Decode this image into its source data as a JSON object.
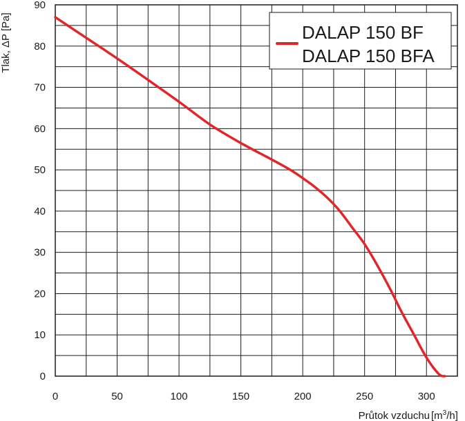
{
  "chart_data": {
    "type": "line",
    "title": "",
    "xlabel": "Průtok vzduchu",
    "xlabel_unit": "[m3/h]",
    "ylabel": "Tlak, ΔP [Pa]",
    "xlim": [
      0,
      325
    ],
    "ylim": [
      0,
      90
    ],
    "x_ticks": [
      0,
      50,
      100,
      150,
      200,
      250,
      300
    ],
    "y_ticks": [
      0,
      10,
      20,
      30,
      40,
      50,
      60,
      70,
      80,
      90
    ],
    "minor_x_step": 25,
    "minor_y_step": 5,
    "grid": true,
    "legend_position": "top-right",
    "series": [
      {
        "name": "DALAP 150 BF",
        "name2": "DALAP 150 BFA",
        "color": "#e0262b",
        "x": [
          0,
          25,
          50,
          75,
          100,
          125,
          150,
          175,
          190,
          200,
          210,
          220,
          230,
          240,
          250,
          260,
          270,
          280,
          290,
          300,
          310,
          315
        ],
        "y": [
          87,
          82,
          77,
          71.8,
          66.5,
          61,
          56.5,
          52.5,
          50,
          48,
          45.8,
          43.2,
          40,
          36,
          32,
          27,
          21.5,
          15.5,
          10,
          4.5,
          0.5,
          0
        ]
      }
    ]
  }
}
